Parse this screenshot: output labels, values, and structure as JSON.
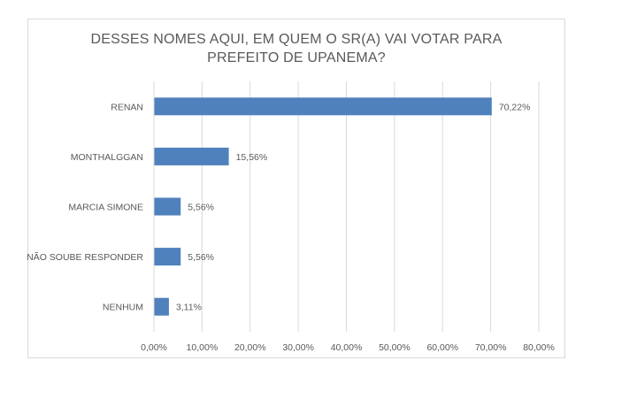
{
  "chart_data": {
    "type": "bar",
    "orientation": "horizontal",
    "title_lines": [
      "DESSES NOMES AQUI, EM QUEM O SR(A) VAI VOTAR PARA",
      "PREFEITO DE UPANEMA?"
    ],
    "categories": [
      "RENAN",
      "MONTHALGGAN",
      "MARCIA SIMONE",
      "NÃO SOUBE RESPONDER",
      "NENHUM"
    ],
    "values": [
      70.22,
      15.56,
      5.56,
      5.56,
      3.11
    ],
    "data_labels": [
      "70,22%",
      "15,56%",
      "5,56%",
      "5,56%",
      "3,11%"
    ],
    "x_ticks": [
      0,
      10,
      20,
      30,
      40,
      50,
      60,
      70,
      80
    ],
    "x_tick_labels": [
      "0,00%",
      "10,00%",
      "20,00%",
      "30,00%",
      "40,00%",
      "50,00%",
      "60,00%",
      "70,00%",
      "80,00%"
    ],
    "xlim": [
      0,
      80
    ],
    "xlabel": "",
    "ylabel": "",
    "grid": "vertical",
    "legend": "none",
    "bar_color": "#4f81bd",
    "grid_color": "#d9d9d9"
  }
}
